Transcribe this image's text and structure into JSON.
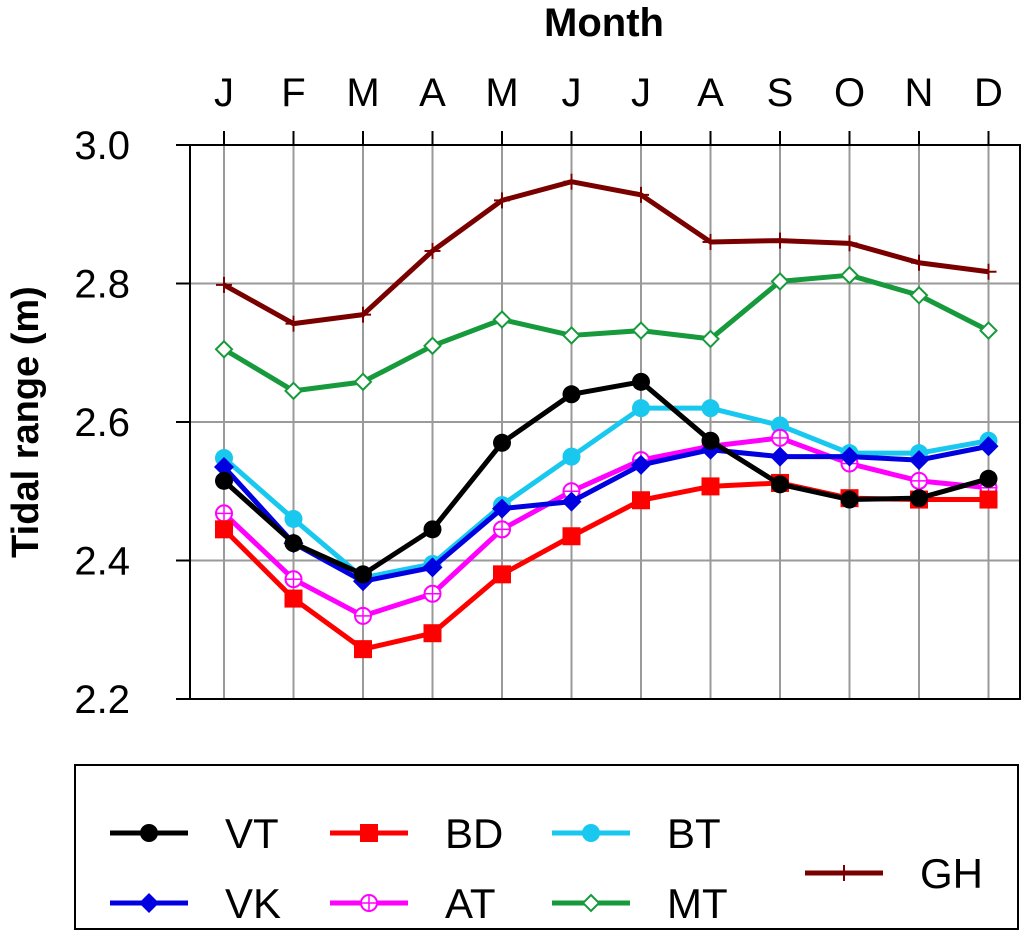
{
  "chart_data": {
    "type": "line",
    "title": "Month",
    "ylabel": "Tidal range (m)",
    "categories": [
      "J",
      "F",
      "M",
      "A",
      "M",
      "J",
      "J",
      "A",
      "S",
      "O",
      "N",
      "D"
    ],
    "ylim": [
      2.2,
      3.0
    ],
    "yticks": [
      "2.2",
      "2.4",
      "2.6",
      "2.8",
      "3.0"
    ],
    "grid": true,
    "legend_position": "bottom",
    "series": [
      {
        "name": "VT",
        "color": "#000000",
        "marker": "circle",
        "values": [
          2.515,
          2.425,
          2.38,
          2.445,
          2.57,
          2.64,
          2.658,
          2.573,
          2.51,
          2.488,
          2.49,
          2.518
        ]
      },
      {
        "name": "BD",
        "color": "#ff0000",
        "marker": "square",
        "values": [
          2.445,
          2.345,
          2.272,
          2.295,
          2.38,
          2.435,
          2.487,
          2.507,
          2.512,
          2.49,
          2.488,
          2.488
        ]
      },
      {
        "name": "BT",
        "color": "#19c8ee",
        "marker": "circle",
        "values": [
          2.548,
          2.46,
          2.375,
          2.395,
          2.48,
          2.55,
          2.62,
          2.62,
          2.595,
          2.555,
          2.555,
          2.573
        ]
      },
      {
        "name": "VK",
        "color": "#0000e0",
        "marker": "diamond",
        "values": [
          2.535,
          2.425,
          2.37,
          2.39,
          2.475,
          2.485,
          2.538,
          2.56,
          2.55,
          2.55,
          2.545,
          2.565
        ]
      },
      {
        "name": "AT",
        "color": "#ff00ff",
        "marker": "circle-plus",
        "values": [
          2.468,
          2.373,
          2.32,
          2.352,
          2.445,
          2.5,
          2.545,
          2.565,
          2.577,
          2.54,
          2.515,
          2.505
        ]
      },
      {
        "name": "MT",
        "color": "#169a3c",
        "marker": "diamond-open",
        "values": [
          2.705,
          2.645,
          2.658,
          2.71,
          2.748,
          2.725,
          2.732,
          2.72,
          2.803,
          2.812,
          2.783,
          2.732
        ]
      },
      {
        "name": "GH",
        "color": "#7a0000",
        "marker": "plus",
        "values": [
          2.798,
          2.742,
          2.755,
          2.847,
          2.92,
          2.947,
          2.928,
          2.86,
          2.862,
          2.858,
          2.83,
          2.817
        ]
      }
    ]
  }
}
